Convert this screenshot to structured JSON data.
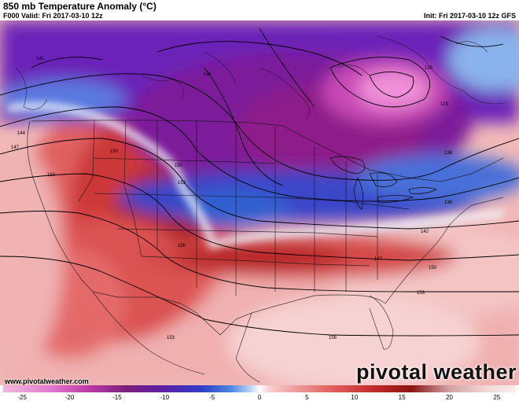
{
  "header": {
    "title": "850 mb Temperature Anomaly (°C)",
    "valid": "F000 Valid: Fri 2017-03-10 12z",
    "init": "Init: Fri 2017-03-10 12z GFS"
  },
  "branding": {
    "url": "www.pivotalweather.com",
    "logo": "pivotal weather"
  },
  "colorbar": {
    "ticks": [
      "-25",
      "-20",
      "-15",
      "-10",
      "-5",
      "0",
      "5",
      "10",
      "15",
      "20",
      "25"
    ],
    "range": [
      -27,
      27
    ],
    "stops": [
      {
        "v": -27,
        "c": "#f4b8df"
      },
      {
        "v": -22,
        "c": "#e27ad0"
      },
      {
        "v": -18,
        "c": "#bc3aa6"
      },
      {
        "v": -14,
        "c": "#7c1f7c"
      },
      {
        "v": -10,
        "c": "#5a1fa6"
      },
      {
        "v": -6,
        "c": "#2f3fc8"
      },
      {
        "v": -3,
        "c": "#4f86e2"
      },
      {
        "v": -1,
        "c": "#b8d4f2"
      },
      {
        "v": 0,
        "c": "#ffffff"
      },
      {
        "v": 1,
        "c": "#f6d0d0"
      },
      {
        "v": 4,
        "c": "#ef9a9a"
      },
      {
        "v": 8,
        "c": "#e05a5a"
      },
      {
        "v": 12,
        "c": "#c42b2b"
      },
      {
        "v": 16,
        "c": "#8c1414"
      },
      {
        "v": 20,
        "c": "#d0a2a2"
      },
      {
        "v": 24,
        "c": "#f4d8d8"
      },
      {
        "v": 27,
        "c": "#fbecec"
      }
    ]
  },
  "height_labels": [
    "141",
    "126",
    "129",
    "153",
    "144",
    "147",
    "150",
    "153",
    "138",
    "136",
    "142",
    "147",
    "150",
    "153",
    "156",
    "153",
    "150",
    "153",
    "156"
  ]
}
